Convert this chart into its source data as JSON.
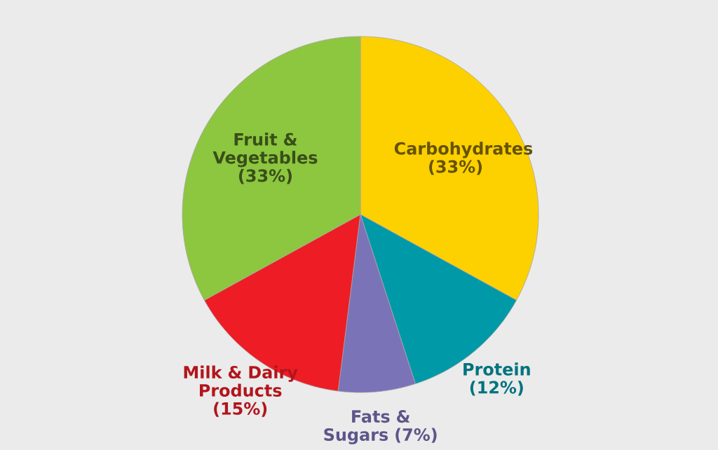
{
  "chart_data": {
    "type": "pie",
    "categories": [
      "Carbohydrates",
      "Protein",
      "Fats & Sugars",
      "Milk & Dairy Products",
      "Fruit & Vegetables"
    ],
    "values": [
      33,
      12,
      7,
      15,
      33
    ],
    "value_labels": [
      "(33%)",
      "(12%)",
      "(7%)",
      "(15%)",
      "(33%)"
    ],
    "colors": [
      "#fdd000",
      "#0099a8",
      "#7b73b8",
      "#ee1c25",
      "#8dc63f"
    ]
  }
}
